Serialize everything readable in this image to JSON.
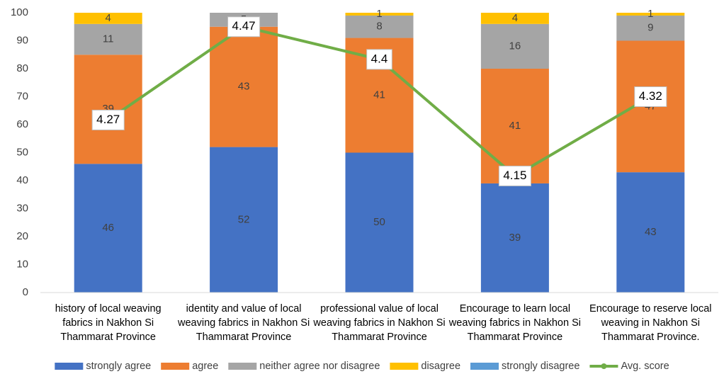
{
  "chart_data": {
    "type": "bar",
    "stacked": true,
    "categories": [
      "history of  local weaving fabrics in Nakhon Si Thammarat Province",
      "identity and value of local weaving fabrics in Nakhon Si Thammarat Province",
      "professional value of  local weaving fabrics in Nakhon Si Thammarat Province",
      "Encourage to learn  local weaving fabrics in Nakhon Si Thammarat Province",
      "Encourage to reserve local weaving in Nakhon Si Thammarat Province."
    ],
    "series": [
      {
        "name": "strongly agree",
        "color": "#4472c4",
        "values": [
          46,
          52,
          50,
          39,
          43
        ]
      },
      {
        "name": "agree",
        "color": "#ed7d31",
        "values": [
          39,
          43,
          41,
          41,
          47
        ]
      },
      {
        "name": "neither agree nor disagree",
        "color": "#a5a5a5",
        "values": [
          11,
          5,
          8,
          16,
          9
        ]
      },
      {
        "name": "disagree",
        "color": "#ffc000",
        "values": [
          4,
          0,
          1,
          4,
          1
        ]
      },
      {
        "name": "strongly disagree",
        "color": "#5b9bd5",
        "values": [
          0,
          0,
          0,
          0,
          0
        ]
      },
      {
        "name": "Avg. score",
        "color": "#70ad47",
        "type": "line",
        "axis": "y2",
        "values": [
          4.27,
          4.47,
          4.4,
          4.15,
          4.32
        ]
      }
    ],
    "ylim": [
      0,
      100
    ],
    "yticks": [
      0,
      10,
      20,
      30,
      40,
      50,
      60,
      70,
      80,
      90,
      100
    ],
    "y2lim": [
      3.9,
      4.5
    ],
    "grid": false,
    "legend": "bottom"
  }
}
